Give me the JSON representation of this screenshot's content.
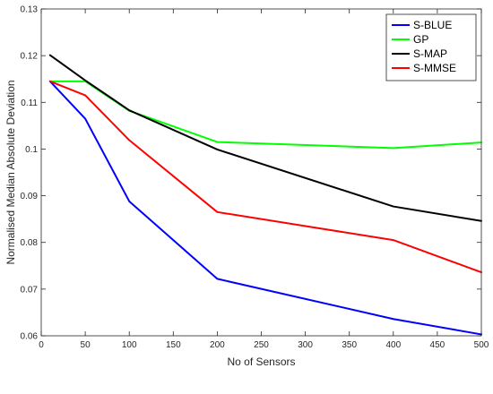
{
  "chart_data": {
    "type": "line",
    "title": "",
    "xlabel": "No of Sensors",
    "ylabel": "Normalised Median Absolute Deviation",
    "xlim": [
      0,
      500
    ],
    "ylim": [
      0.06,
      0.13
    ],
    "xticks": [
      0,
      50,
      100,
      150,
      200,
      250,
      300,
      350,
      400,
      450,
      500
    ],
    "yticks": [
      0.06,
      0.07,
      0.08,
      0.09,
      0.1,
      0.11,
      0.12,
      0.13
    ],
    "xtick_labels": [
      "0",
      "50",
      "100",
      "150",
      "200",
      "250",
      "300",
      "350",
      "400",
      "450",
      "500"
    ],
    "ytick_labels": [
      "0.06",
      "0.07",
      "0.08",
      "0.09",
      "0.1",
      "0.11",
      "0.12",
      "0.13"
    ],
    "grid": false,
    "legend_position": "top-right",
    "series": [
      {
        "name": "S-BLUE",
        "color": "#0000ff",
        "x": [
          10,
          50,
          100,
          200,
          400,
          500
        ],
        "y": [
          0.1145,
          0.1065,
          0.0888,
          0.0722,
          0.0636,
          0.0603
        ]
      },
      {
        "name": "GP",
        "color": "#00ff00",
        "x": [
          10,
          50,
          100,
          200,
          400,
          500
        ],
        "y": [
          0.1145,
          0.1145,
          0.1082,
          0.1015,
          0.1002,
          0.1014
        ]
      },
      {
        "name": "S-MAP",
        "color": "#000000",
        "x": [
          10,
          50,
          100,
          200,
          400,
          500
        ],
        "y": [
          0.1201,
          0.1147,
          0.1083,
          0.0999,
          0.0877,
          0.0846
        ]
      },
      {
        "name": "S-MMSE",
        "color": "#ff0000",
        "x": [
          10,
          50,
          100,
          200,
          400,
          500
        ],
        "y": [
          0.1145,
          0.1115,
          0.1019,
          0.0865,
          0.0805,
          0.0736
        ]
      }
    ]
  }
}
